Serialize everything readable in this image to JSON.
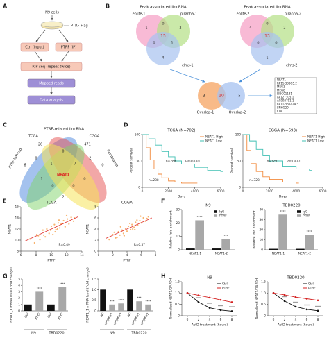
{
  "panel_labels": [
    "A",
    "B",
    "C",
    "D",
    "E",
    "F",
    "G",
    "H"
  ],
  "flowchart": {
    "cells": "N9 cells",
    "tag": "PTRF-Flag",
    "ctrl": "Ctrl (input)",
    "ip": "PTRF (IP)",
    "seq": "RIP-seq (repeat twice)",
    "mapped": "Mapped reads",
    "analysis": "Data analysis"
  },
  "venn_b": {
    "title_1": "Peak associated lincRNA",
    "title_2": "Peak associated lincRNA",
    "sets_1": [
      "eblife-1",
      "piranha-1",
      "clms-1"
    ],
    "counts_1": [
      1,
      2,
      4,
      0,
      0,
      1,
      15
    ],
    "sets_2": [
      "eblife-2",
      "piranha-2",
      "clms-2"
    ],
    "counts_2": [
      4,
      2,
      1,
      0,
      0,
      0,
      13
    ],
    "overlap_sets": [
      "Overlap-1",
      "Overlap-2"
    ],
    "overlap_counts": [
      3,
      10,
      5
    ],
    "genes": [
      "NEAT1",
      "RP11-338O5.2",
      "MEG3",
      "MEG8",
      "LINC01181",
      "AP127305.1",
      "AC093791.1",
      "RP11-531A24.5",
      "SNHG20",
      "FTX"
    ]
  },
  "venn_c": {
    "title": "PTRF-related lincRNA",
    "sets": [
      "TCGA",
      "CGGA",
      "PTRF RIP-seq",
      "Rembrandt"
    ],
    "counts": [
      26,
      471,
      6,
      0,
      0,
      0,
      2,
      1,
      7,
      1,
      0,
      0,
      0,
      2
    ],
    "center": "NEAT1"
  },
  "chart_data": [
    {
      "type": "line",
      "step": true,
      "title": "TCGA (N=702)",
      "xlabel": "Days",
      "ylabel": "Percent survival",
      "xlim": [
        0,
        6000
      ],
      "xticks": [
        0,
        2000,
        4000,
        6000
      ],
      "ylim": [
        0,
        100
      ],
      "yticks": [
        0,
        50,
        100
      ],
      "legend": "upper right",
      "series": [
        {
          "name": "NEAT1 High",
          "color": "#f28a3c",
          "x": [
            0,
            300,
            600,
            900,
            1200,
            1500,
            2000,
            2500,
            3000,
            4000
          ],
          "values": [
            100,
            75,
            52,
            35,
            25,
            18,
            12,
            10,
            8,
            8
          ]
        },
        {
          "name": "NEAT1 Low",
          "color": "#3fbfb2",
          "x": [
            0,
            500,
            1000,
            1500,
            2000,
            2500,
            3000,
            4000,
            5000,
            6000
          ],
          "values": [
            100,
            92,
            80,
            68,
            58,
            50,
            44,
            38,
            32,
            30
          ]
        }
      ],
      "annotations": [
        "n=288",
        "P<0.0001",
        "n=288"
      ]
    },
    {
      "type": "line",
      "step": true,
      "title": "CGGA (N=693)",
      "xlabel": "Days",
      "ylabel": "Percent survival",
      "xlim": [
        0,
        6000
      ],
      "xticks": [
        0,
        2000,
        4000,
        6000
      ],
      "ylim": [
        0,
        100
      ],
      "yticks": [
        0,
        50,
        100
      ],
      "legend": "upper right",
      "series": [
        {
          "name": "NEAT1 High",
          "color": "#f28a3c",
          "x": [
            0,
            300,
            600,
            1000,
            1500,
            2000,
            3000,
            4000
          ],
          "values": [
            100,
            70,
            45,
            30,
            20,
            15,
            10,
            8
          ]
        },
        {
          "name": "NEAT1 Low",
          "color": "#3fbfb2",
          "x": [
            0,
            500,
            1000,
            1500,
            2000,
            3000,
            4000,
            5000
          ],
          "values": [
            100,
            88,
            72,
            60,
            50,
            40,
            35,
            32
          ]
        }
      ],
      "annotations": [
        "n=329",
        "P<0.0001",
        "n=328"
      ]
    },
    {
      "type": "scatter",
      "title": "TCGA",
      "xlabel": "PTRF",
      "ylabel": "NEAT1",
      "xlim": [
        6,
        14
      ],
      "xticks": [
        6,
        8,
        10,
        12,
        14
      ],
      "ylim": [
        8,
        16
      ],
      "yticks": [
        8,
        10,
        12,
        14,
        16
      ],
      "color": "#f5a04a",
      "x": [
        7.2,
        7.8,
        8.1,
        8.5,
        8.9,
        9.2,
        9.4,
        9.7,
        10.0,
        10.2,
        10.4,
        10.6,
        10.9,
        11.1,
        11.3,
        11.6,
        11.8,
        12.1,
        12.3,
        12.6,
        12.9,
        9.0,
        10.5,
        11.0,
        8.3,
        12.0,
        10.8,
        9.9,
        11.5,
        13.0
      ],
      "values": [
        10.2,
        9.5,
        11.0,
        10.1,
        11.8,
        10.6,
        12.0,
        11.2,
        12.5,
        11.0,
        12.8,
        11.9,
        13.1,
        12.2,
        12.9,
        13.5,
        12.4,
        13.8,
        12.9,
        14.1,
        13.4,
        10.9,
        11.5,
        13.6,
        10.8,
        14.4,
        12.0,
        11.8,
        13.0,
        14.0
      ],
      "trend": {
        "color": "#e0302a",
        "x": [
          6.5,
          13.5
        ],
        "values": [
          9.8,
          14.2
        ]
      },
      "annotations": [
        "R=0.49"
      ]
    },
    {
      "type": "scatter",
      "title": "CGGA",
      "xlabel": "PTRF",
      "ylabel": "NEAT1",
      "xlim": [
        0,
        8
      ],
      "xticks": [
        0,
        2,
        4,
        6,
        8
      ],
      "ylim": [
        0,
        8
      ],
      "yticks": [
        0,
        2,
        4,
        6,
        8
      ],
      "color": "#f5a04a",
      "x": [
        1.5,
        2.0,
        2.4,
        2.8,
        3.0,
        3.3,
        3.5,
        3.8,
        4.0,
        4.2,
        4.5,
        4.7,
        5.0,
        5.2,
        5.5,
        5.8,
        6.0,
        6.3,
        6.6,
        7.0,
        2.2,
        3.6,
        4.4,
        5.1,
        5.9,
        3.1,
        4.8,
        6.8,
        2.6,
        5.4
      ],
      "values": [
        2.1,
        3.0,
        2.4,
        3.5,
        2.9,
        3.8,
        3.2,
        4.1,
        3.6,
        4.5,
        3.9,
        4.8,
        4.3,
        5.2,
        4.7,
        5.5,
        5.1,
        6.0,
        5.4,
        6.2,
        3.4,
        2.8,
        5.0,
        3.9,
        6.3,
        4.4,
        4.0,
        5.9,
        2.5,
        5.6
      ],
      "trend": {
        "color": "#e0302a",
        "x": [
          1,
          7.5
        ],
        "values": [
          2.3,
          6.0
        ]
      },
      "annotations": [
        "R=0.57"
      ]
    },
    {
      "type": "bar",
      "title": "N9",
      "ylabel": "Relative fold enrichment",
      "categories": [
        "NEAT1-1",
        "NEAT1-2"
      ],
      "ylim": [
        0,
        30
      ],
      "yticks": [
        0,
        10,
        20,
        30
      ],
      "legend": "upper right",
      "series": [
        {
          "name": "IgG",
          "color": "#111111",
          "values": [
            1,
            1
          ],
          "significance": [
            null,
            null
          ]
        },
        {
          "name": "PTRF",
          "color": "#a8a8a8",
          "values": [
            22,
            8
          ],
          "significance": [
            "****",
            "***"
          ]
        }
      ]
    },
    {
      "type": "bar",
      "title": "TBD0220",
      "ylabel": "Relative fold enrichment",
      "categories": [
        "NEAT1-1",
        "NEAT1-2"
      ],
      "ylim": [
        0,
        40
      ],
      "yticks": [
        0,
        10,
        20,
        30,
        40
      ],
      "legend": "upper right",
      "series": [
        {
          "name": "IgG",
          "color": "#111111",
          "values": [
            1,
            1
          ],
          "significance": [
            null,
            null
          ]
        },
        {
          "name": "PTRF",
          "color": "#a8a8a8",
          "values": [
            35,
            15
          ],
          "significance": [
            "****",
            "****"
          ]
        }
      ]
    },
    {
      "type": "bar",
      "ylabel": "NEAT1_1 mRNA level (Fold change)",
      "categories": [
        "Ctrl",
        "PTRF",
        "Ctrl",
        "PTRF"
      ],
      "group_labels": [
        "N9",
        "TBD0220"
      ],
      "ylim": [
        0,
        5
      ],
      "yticks": [
        0,
        1,
        2,
        3,
        4,
        5
      ],
      "series": [
        {
          "colors": [
            "#111111",
            "#a8a8a8",
            "#111111",
            "#a8a8a8"
          ],
          "values": [
            1,
            3,
            1,
            3.7
          ],
          "significance": [
            null,
            "****",
            null,
            "****"
          ]
        }
      ]
    },
    {
      "type": "bar",
      "ylabel": "NEAT1_1 mRNA level (Fold change)",
      "categories": [
        "NC",
        "siPTRF#1",
        "siPTRF#2",
        "NC",
        "siPTRF#1",
        "siPTRF#2"
      ],
      "group_labels": [
        "N9",
        "TBD0220"
      ],
      "ylim": [
        0,
        1.5
      ],
      "yticks": [
        0,
        0.5,
        {
          "value": 1,
          "label": "1.0"
        },
        1.5
      ],
      "series": [
        {
          "colors": [
            "#111111",
            "#a8a8a8",
            "#a8a8a8",
            "#111111",
            "#a8a8a8",
            "#a8a8a8"
          ],
          "values": [
            1,
            0.3,
            0.35,
            1,
            0.45,
            0.3
          ],
          "significance": [
            null,
            "***",
            "****",
            null,
            "***",
            "****"
          ]
        }
      ]
    },
    {
      "type": "line",
      "markers": true,
      "title": "N9",
      "xlabel": "ActD treatment (hours)",
      "ylabel": "Normalized NEAT1/GAPDH",
      "x": [
        0,
        2,
        4,
        6,
        8
      ],
      "xlim": [
        -1,
        9
      ],
      "xticks": [
        0,
        2,
        4,
        6,
        8
      ],
      "ylim": [
        0,
        1.5
      ],
      "yticks": [
        0,
        0.5,
        {
          "value": 1,
          "label": "1.0"
        },
        1.5
      ],
      "legend": "upper right",
      "series": [
        {
          "name": "Ctrl",
          "color": "#111111",
          "values": [
            1,
            0.6,
            0.35,
            0.25,
            0.2
          ],
          "significance": [
            null,
            "***",
            "****",
            "****",
            "****"
          ]
        },
        {
          "name": "PTRF",
          "color": "#d42020",
          "values": [
            1,
            0.9,
            0.8,
            0.7,
            0.6
          ]
        }
      ]
    },
    {
      "type": "line",
      "markers": true,
      "title": "TBD0220",
      "xlabel": "ActD treatment (hours)",
      "ylabel": "Normalized NEAT1/GAPDH",
      "x": [
        0,
        2,
        4,
        6,
        8
      ],
      "xlim": [
        -1,
        9
      ],
      "xticks": [
        0,
        2,
        4,
        6,
        8
      ],
      "ylim": [
        0,
        1.5
      ],
      "yticks": [
        0,
        0.5,
        {
          "value": 1,
          "label": "1.0"
        },
        1.5
      ],
      "legend": "upper right",
      "series": [
        {
          "name": "Ctrl",
          "color": "#111111",
          "values": [
            1,
            0.65,
            0.4,
            0.28,
            0.22
          ],
          "significance": [
            null,
            "***",
            "****",
            "****",
            "****"
          ]
        },
        {
          "name": "PTRF",
          "color": "#d42020",
          "values": [
            1,
            0.92,
            0.82,
            0.75,
            0.68
          ]
        }
      ]
    }
  ]
}
